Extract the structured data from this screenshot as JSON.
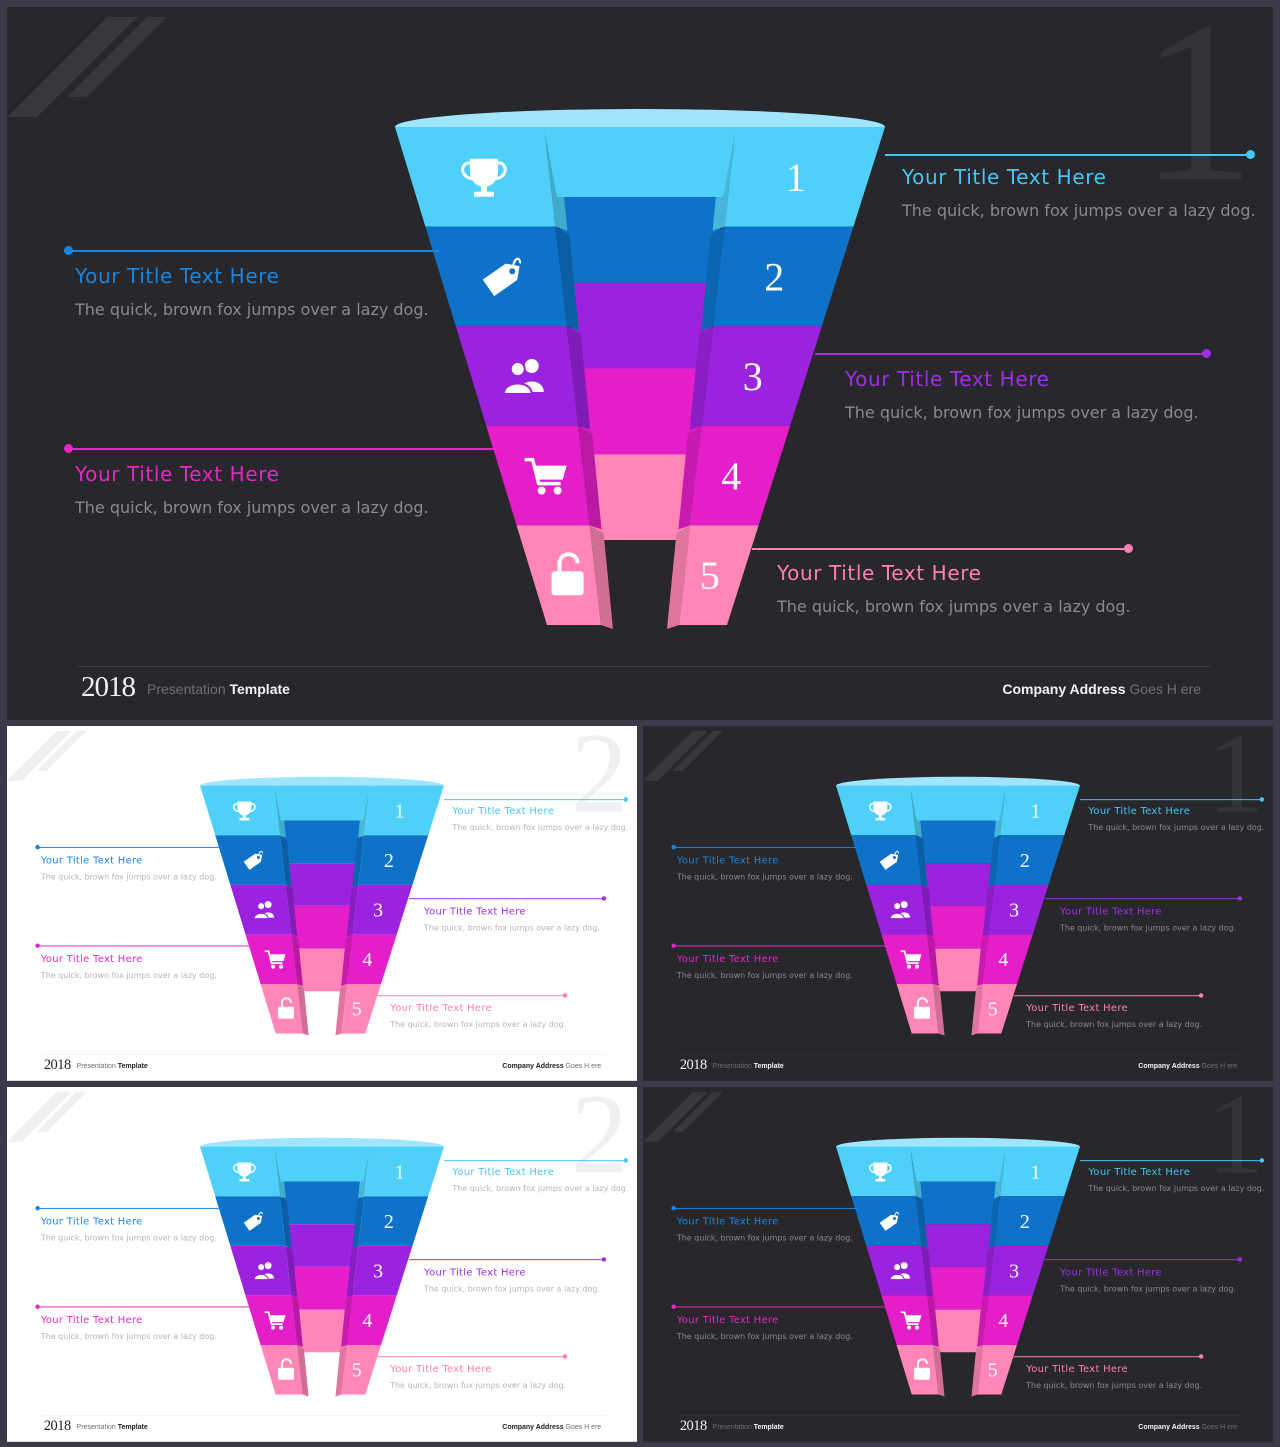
{
  "slides": [
    {
      "theme": "dark",
      "page_number": "1"
    },
    {
      "theme": "light",
      "page_number": "2"
    },
    {
      "theme": "dark",
      "page_number": "1"
    },
    {
      "theme": "light",
      "page_number": "2"
    },
    {
      "theme": "dark",
      "page_number": "1"
    }
  ],
  "funnel_levels": [
    {
      "number": "1",
      "icon": "trophy-icon",
      "color": "#4fd0f8",
      "inner_color": "#0e73c8"
    },
    {
      "number": "2",
      "icon": "price-tag-icon",
      "color": "#0e73c8",
      "inner_color": "#9b22de"
    },
    {
      "number": "3",
      "icon": "users-icon",
      "color": "#9b22de",
      "inner_color": "#e41ec8"
    },
    {
      "number": "4",
      "icon": "shopping-cart-icon",
      "color": "#e41ec8",
      "inner_color": "#ff86b6"
    },
    {
      "number": "5",
      "icon": "unlock-icon",
      "color": "#ff86b6",
      "inner_color": "#ff86b6"
    }
  ],
  "callouts": [
    {
      "title": "Your Title Text Here",
      "text": "The quick, brown fox jumps over a lazy dog.",
      "color": "#45c6f4"
    },
    {
      "title": "Your Title Text Here",
      "text": "The quick, brown fox jumps over a lazy dog.",
      "color": "#1a85e0"
    },
    {
      "title": "Your Title Text Here",
      "text": "The quick, brown fox jumps over a lazy dog.",
      "color": "#a02de8"
    },
    {
      "title": "Your Title Text Here",
      "text": "The quick, brown fox jumps over a lazy dog.",
      "color": "#e826c8"
    },
    {
      "title": "Your Title Text Here",
      "text": "The quick, brown fox jumps over a lazy dog.",
      "color": "#ff7fb4"
    }
  ],
  "footer": {
    "year": "2018",
    "presentation": "Presentation",
    "template": "Template",
    "company_bold": "Company Address",
    "company_rest": "Goes H ere"
  }
}
